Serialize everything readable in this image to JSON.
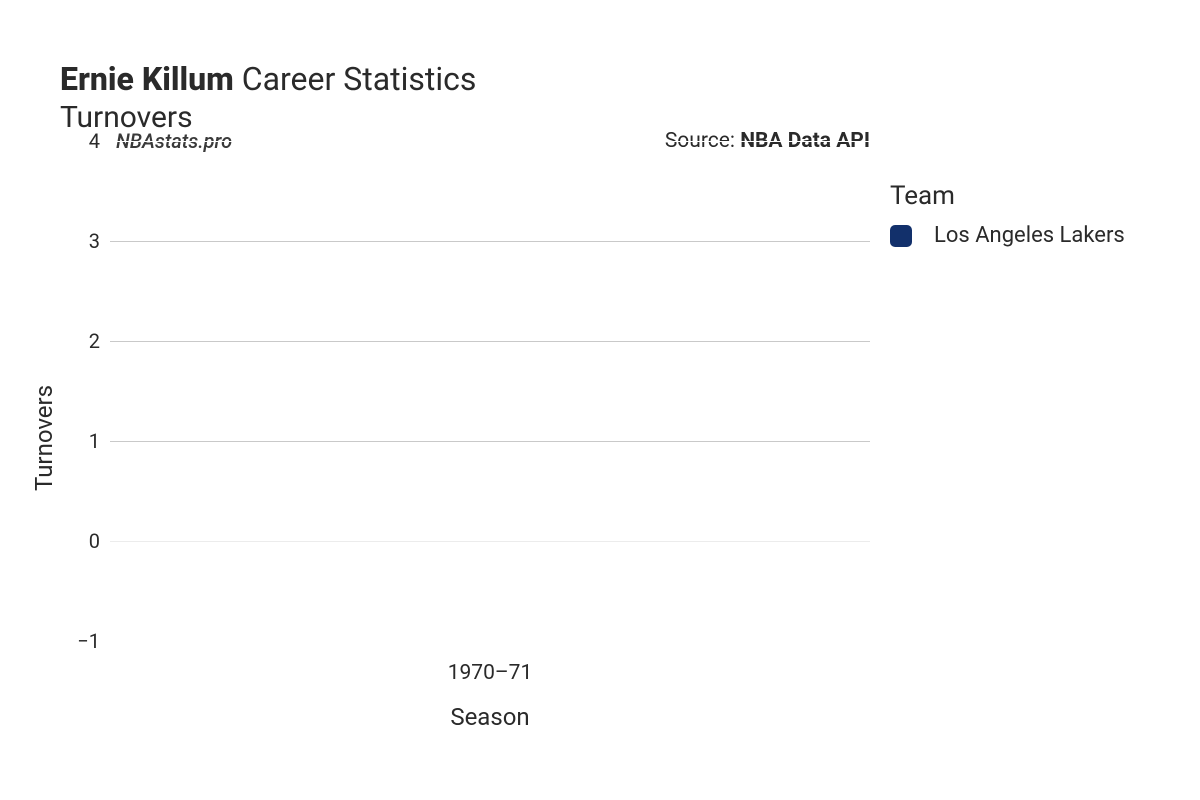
{
  "title": {
    "player": "Ernie Killum",
    "suffix": " Career Statistics",
    "subtitle": "Turnovers",
    "title_fontsize": 32,
    "subtitle_fontsize": 30,
    "color": "#2a2a2a"
  },
  "chart": {
    "type": "bar",
    "categories": [
      "1970–71"
    ],
    "values": [
      0
    ],
    "bar_colors": [
      "#12306b"
    ],
    "background_color": "#ffffff",
    "ylim": [
      -1,
      4
    ],
    "yticks": [
      -1,
      0,
      1,
      2,
      3,
      4
    ],
    "ytick_fontsize": 20,
    "xtick_fontsize": 21,
    "gridlines": [
      {
        "v": 4,
        "color": "#ffffff"
      },
      {
        "v": 3,
        "color": "#c9c9c9"
      },
      {
        "v": 2,
        "color": "#c9c9c9"
      },
      {
        "v": 1,
        "color": "#c9c9c9"
      },
      {
        "v": 0,
        "color": "#ececec"
      },
      {
        "v": -1,
        "color": "#ffffff"
      }
    ],
    "xaxis_title": "Season",
    "yaxis_title": "Turnovers",
    "axis_title_fontsize": 24,
    "axis_title_color": "#2a2a2a"
  },
  "watermark": {
    "text": "NBAstats.pro",
    "fontsize": 20,
    "color": "#3a3a3a"
  },
  "source": {
    "prefix": "Source: ",
    "name": "NBA Data API",
    "fontsize": 21,
    "color": "#2a2a2a"
  },
  "legend": {
    "title": "Team",
    "title_fontsize": 26,
    "items": [
      {
        "label": "Los Angeles Lakers",
        "color": "#12306b"
      }
    ],
    "item_fontsize": 22,
    "swatch_radius": 5
  }
}
